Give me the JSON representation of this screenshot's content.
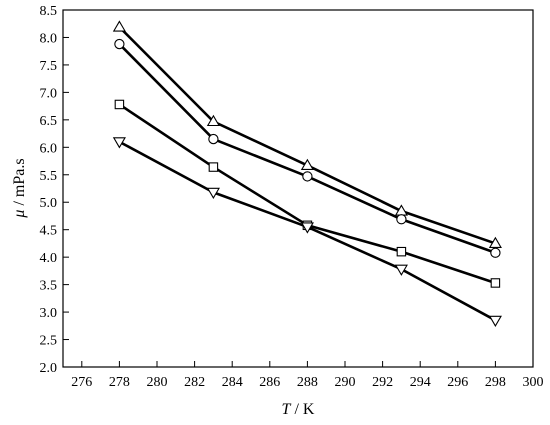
{
  "chart_data": {
    "type": "line",
    "xlabel": {
      "symbol": "T",
      "unit": " / K"
    },
    "ylabel": {
      "symbol": "μ",
      "unit": " / mPa.s"
    },
    "xlim": [
      275,
      300
    ],
    "ylim": [
      2.0,
      8.5
    ],
    "xticks": [
      276,
      278,
      280,
      282,
      284,
      286,
      288,
      290,
      292,
      294,
      296,
      298,
      300
    ],
    "yticks": [
      2.0,
      2.5,
      3.0,
      3.5,
      4.0,
      4.5,
      5.0,
      5.5,
      6.0,
      6.5,
      7.0,
      7.5,
      8.0,
      8.5
    ],
    "grid": false,
    "line_color": "#000000",
    "series": [
      {
        "marker": "triangle-up",
        "x": [
          278,
          283,
          288,
          293,
          298
        ],
        "y": [
          8.19,
          6.47,
          5.67,
          4.84,
          4.25
        ]
      },
      {
        "marker": "circle",
        "x": [
          278,
          283,
          288,
          293,
          298
        ],
        "y": [
          7.88,
          6.15,
          5.47,
          4.69,
          4.08
        ]
      },
      {
        "marker": "square",
        "x": [
          278,
          283,
          288,
          293,
          298
        ],
        "y": [
          6.78,
          5.64,
          4.58,
          4.1,
          3.53
        ]
      },
      {
        "marker": "triangle-down",
        "x": [
          278,
          283,
          288,
          293,
          298
        ],
        "y": [
          6.1,
          5.18,
          4.55,
          3.78,
          2.85
        ]
      }
    ]
  }
}
